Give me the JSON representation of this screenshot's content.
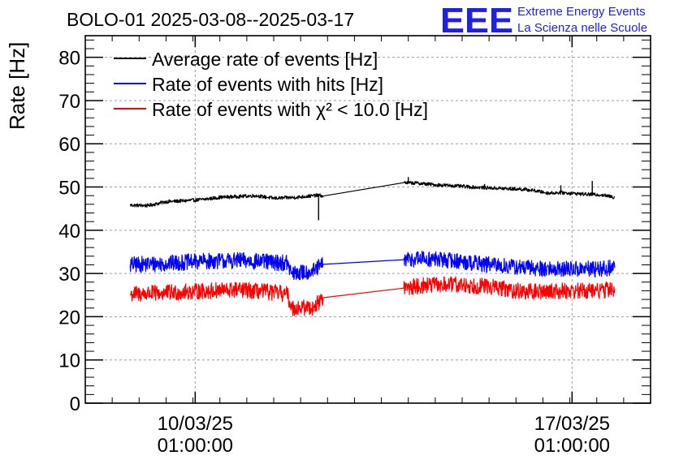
{
  "chart_data": {
    "type": "line",
    "title": "BOLO-01 2025-03-08--2025-03-17",
    "ylabel": "Rate [Hz]",
    "xlabel": "",
    "ylim": [
      0,
      85
    ],
    "yticks": [
      0,
      10,
      20,
      30,
      40,
      50,
      60,
      70,
      80
    ],
    "x_range": [
      "2025-03-08 00:00",
      "2025-03-18 12:00"
    ],
    "xticks": [
      {
        "x": "2025-03-10 01:00",
        "date": "10/03/25",
        "time": "01:00:00"
      },
      {
        "x": "2025-03-17 01:00",
        "date": "17/03/25",
        "time": "01:00:00"
      }
    ],
    "grid": true,
    "legend_position": "top-left",
    "series": [
      {
        "name": "Average rate of events [Hz]",
        "color": "#000000",
        "noise": 0.4,
        "points": [
          [
            "2025-03-08 20:00",
            45.8
          ],
          [
            "2025-03-09 04:00",
            45.7
          ],
          [
            "2025-03-09 12:00",
            46.6
          ],
          [
            "2025-03-09 20:00",
            46.8
          ],
          [
            "2025-03-10 04:00",
            47.1
          ],
          [
            "2025-03-10 12:00",
            47.6
          ],
          [
            "2025-03-10 20:00",
            47.8
          ],
          [
            "2025-03-11 04:00",
            48.0
          ],
          [
            "2025-03-11 12:00",
            47.4
          ],
          [
            "2025-03-11 22:00",
            47.6
          ],
          [
            "2025-03-12 08:00",
            48.1
          ],
          [
            "2025-03-12 10:00",
            47.9
          ],
          [
            "2025-03-13 22:00",
            51.0
          ],
          [
            "2025-03-14 04:00",
            50.9
          ],
          [
            "2025-03-14 12:00",
            50.5
          ],
          [
            "2025-03-14 20:00",
            50.3
          ],
          [
            "2025-03-15 04:00",
            50.0
          ],
          [
            "2025-03-15 12:00",
            49.8
          ],
          [
            "2025-03-15 20:00",
            49.6
          ],
          [
            "2025-03-16 02:00",
            49.5
          ],
          [
            "2025-03-16 08:00",
            49.2
          ],
          [
            "2025-03-16 14:00",
            48.6
          ],
          [
            "2025-03-16 20:00",
            48.7
          ],
          [
            "2025-03-17 02:00",
            48.5
          ],
          [
            "2025-03-17 08:00",
            48.3
          ],
          [
            "2025-03-17 14:00",
            48.2
          ],
          [
            "2025-03-17 20:00",
            47.6
          ]
        ],
        "spikes": [
          {
            "x": "2025-03-12 08:00",
            "y": 42.3
          },
          {
            "x": "2025-03-14 00:00",
            "y": 52.3
          },
          {
            "x": "2025-03-15 10:00",
            "y": 50.7
          },
          {
            "x": "2025-03-16 20:00",
            "y": 50.4
          },
          {
            "x": "2025-03-17 10:00",
            "y": 51.4
          }
        ]
      },
      {
        "name": "Rate of events with hits [Hz]",
        "color": "#0000ff",
        "noise": 1.9,
        "points": [
          [
            "2025-03-08 20:00",
            32.0
          ],
          [
            "2025-03-09 12:00",
            32.3
          ],
          [
            "2025-03-10 04:00",
            32.8
          ],
          [
            "2025-03-10 20:00",
            33.0
          ],
          [
            "2025-03-11 12:00",
            32.6
          ],
          [
            "2025-03-11 18:00",
            32.4
          ],
          [
            "2025-03-11 20:00",
            29.9
          ],
          [
            "2025-03-12 06:00",
            30.6
          ],
          [
            "2025-03-12 10:00",
            32.1
          ],
          [
            "2025-03-13 22:00",
            33.2
          ],
          [
            "2025-03-14 06:00",
            33.4
          ],
          [
            "2025-03-14 20:00",
            33.0
          ],
          [
            "2025-03-15 12:00",
            32.0
          ],
          [
            "2025-03-16 04:00",
            31.3
          ],
          [
            "2025-03-16 20:00",
            31.0
          ],
          [
            "2025-03-17 12:00",
            31.0
          ],
          [
            "2025-03-17 20:00",
            31.3
          ]
        ],
        "spikes": []
      },
      {
        "name": "Rate of events with χ² < 10.0 [Hz]",
        "color": "#ff0000",
        "noise": 1.9,
        "points": [
          [
            "2025-03-08 20:00",
            25.2
          ],
          [
            "2025-03-09 12:00",
            25.5
          ],
          [
            "2025-03-10 04:00",
            25.9
          ],
          [
            "2025-03-10 20:00",
            26.2
          ],
          [
            "2025-03-11 12:00",
            25.6
          ],
          [
            "2025-03-11 18:00",
            25.2
          ],
          [
            "2025-03-11 20:00",
            22.0
          ],
          [
            "2025-03-12 06:00",
            22.2
          ],
          [
            "2025-03-12 10:00",
            24.4
          ],
          [
            "2025-03-13 22:00",
            26.6
          ],
          [
            "2025-03-14 06:00",
            27.2
          ],
          [
            "2025-03-14 20:00",
            27.4
          ],
          [
            "2025-03-15 12:00",
            27.0
          ],
          [
            "2025-03-16 04:00",
            25.7
          ],
          [
            "2025-03-16 20:00",
            26.0
          ],
          [
            "2025-03-17 12:00",
            26.0
          ],
          [
            "2025-03-17 20:00",
            26.4
          ]
        ],
        "spikes": []
      }
    ]
  },
  "logo": {
    "mark": "EEE",
    "line1": "Extreme Energy Events",
    "line2": "La Scienza nelle Scuole"
  }
}
